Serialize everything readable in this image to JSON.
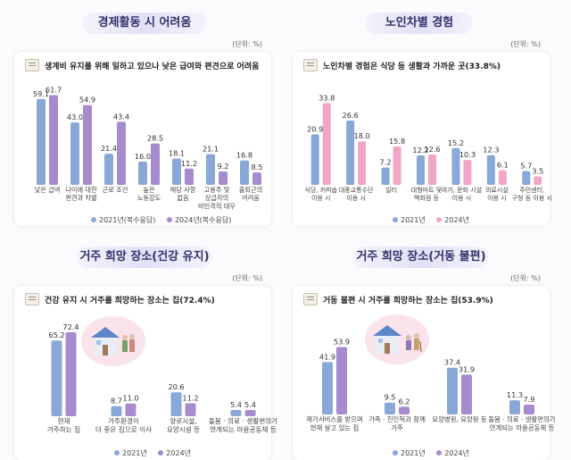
{
  "panels": [
    {
      "title": "경제활동 시 어려움",
      "unit": "(단위: %)",
      "subtitle": "생계비 유지를 위해 일하고 있으나 낮은 급여와 편견으로 어려움",
      "legend": [
        "2021년(복수응답)",
        "2024년(복수응답)"
      ]
    },
    {
      "title": "노인차별 경험",
      "unit": "(단위: %)",
      "subtitle": "노인차별 경험은 식당 등 생활과 가까운 곳(33.8%)",
      "legend": [
        "2021년",
        "2024년"
      ]
    },
    {
      "title": "거주 희망 장소(건강 유지)",
      "unit": "(단위: %)",
      "subtitle": "건강 유지 시 거주를 희망하는 장소는 집(72.4%)",
      "legend": [
        "2021년",
        "2024년"
      ]
    },
    {
      "title": "거주 희망 장소(거동 불편)",
      "unit": "(단위: %)",
      "subtitle": "거동 불편 시 거주를 희망하는 장소는 집(53.9%)",
      "legend": [
        "2021년",
        "2024년"
      ]
    }
  ],
  "colors": {
    "blue_2021": "#89a8d8",
    "purple_2024": "#a78bcf",
    "pink_2024": "#f2a6c6",
    "pill_text": "#33306a"
  },
  "chart_data": [
    {
      "type": "bar",
      "title": "경제활동 시 어려움",
      "categories": [
        "낮은 급여",
        "나이에 대한\n편견과 차별",
        "근로 조건",
        "높은\n노동강도",
        "해당 사항\n없음",
        "고용주 및\n상급자의\n비인격적 대우",
        "출퇴근의\n어려움"
      ],
      "series": [
        {
          "name": "2021년(복수응답)",
          "values": [
            59.1,
            43.0,
            21.4,
            16.0,
            18.1,
            21.1,
            16.8
          ]
        },
        {
          "name": "2024년(복수응답)",
          "values": [
            61.7,
            54.9,
            43.4,
            28.5,
            11.2,
            9.2,
            8.5
          ]
        }
      ],
      "ylim": [
        0,
        70
      ],
      "grid": false,
      "legend_position": "bottom"
    },
    {
      "type": "bar",
      "title": "노인차별 경험",
      "categories": [
        "식당, 커피숍\n이용 시",
        "대중교통수단\n이용 시",
        "일터",
        "대형마트 및\n백화점 등",
        "여가, 문화 시설\n이용 시",
        "의료시설\n이용 시",
        "주민센터,\n구청 등 이용 시"
      ],
      "series": [
        {
          "name": "2021년",
          "values": [
            20.9,
            26.6,
            7.2,
            12.2,
            15.2,
            12.3,
            5.7
          ]
        },
        {
          "name": "2024년",
          "values": [
            33.8,
            18.0,
            15.8,
            12.6,
            10.3,
            6.1,
            3.5
          ]
        }
      ],
      "ylim": [
        0,
        38
      ],
      "grid": false,
      "legend_position": "bottom"
    },
    {
      "type": "bar",
      "title": "거주 희망 장소(건강 유지)",
      "categories": [
        "현재\n거주하는 집",
        "거주환경이\n더 좋은 집으로 이사",
        "양로시설,\n요양시설 등",
        "돌봄 · 의료 · 생활편의가\n연계되는 마을공동체 등"
      ],
      "series": [
        {
          "name": "2021년",
          "values": [
            65.2,
            8.7,
            20.6,
            5.4
          ]
        },
        {
          "name": "2024년",
          "values": [
            72.4,
            11.0,
            11.2,
            5.4
          ]
        }
      ],
      "ylim": [
        0,
        80
      ],
      "grid": false,
      "legend_position": "bottom"
    },
    {
      "type": "bar",
      "title": "거주 희망 장소(거동 불편)",
      "categories": [
        "재가서비스를 받으며\n현재 살고 있는 집",
        "가족 · 친인척과 함께\n거주",
        "요양병원, 요양원 등",
        "돌봄 · 의료 · 생활편의가\n연계되는 마을공동체 등"
      ],
      "series": [
        {
          "name": "2021년",
          "values": [
            41.9,
            9.5,
            37.4,
            11.3
          ]
        },
        {
          "name": "2024년",
          "values": [
            53.9,
            6.2,
            31.9,
            7.9
          ]
        }
      ],
      "ylim": [
        0,
        60
      ],
      "grid": false,
      "legend_position": "bottom"
    }
  ]
}
